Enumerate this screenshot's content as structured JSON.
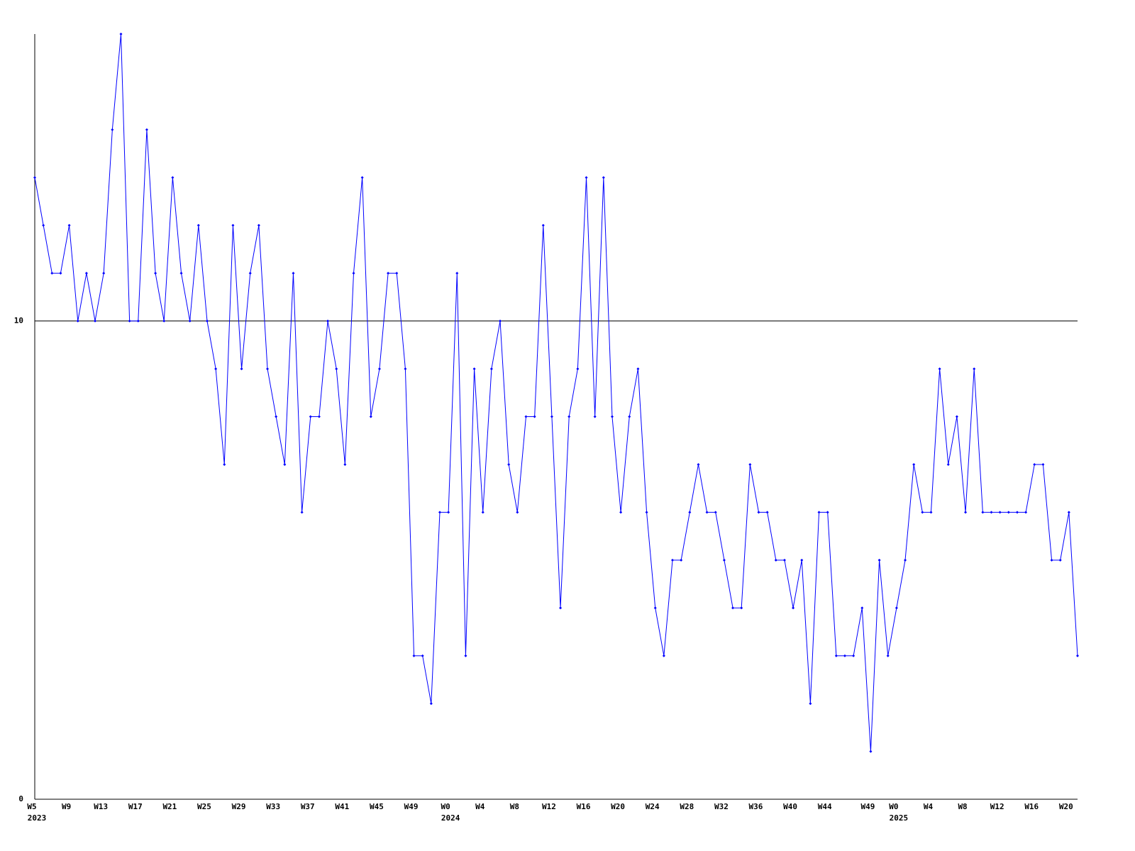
{
  "chart_data": {
    "type": "line",
    "color": "#0000ff",
    "ylim": [
      0,
      16
    ],
    "yticks": [
      0,
      10
    ],
    "grid": true,
    "categories": [
      "W5",
      null,
      null,
      null,
      "W9",
      null,
      null,
      null,
      "W13",
      null,
      null,
      null,
      "W17",
      null,
      null,
      null,
      "W21",
      null,
      null,
      null,
      "W25",
      null,
      null,
      null,
      "W29",
      null,
      null,
      null,
      "W33",
      null,
      null,
      null,
      "W37",
      null,
      null,
      null,
      "W41",
      null,
      null,
      null,
      "W45",
      null,
      null,
      null,
      "W49",
      null,
      null,
      null,
      "W0",
      null,
      null,
      null,
      "W4",
      null,
      null,
      null,
      "W8",
      null,
      null,
      null,
      "W12",
      null,
      null,
      null,
      "W16",
      null,
      null,
      null,
      "W20",
      null,
      null,
      null,
      "W24",
      null,
      null,
      null,
      "W28",
      null,
      null,
      null,
      "W32",
      null,
      null,
      null,
      "W36",
      null,
      null,
      null,
      "W40",
      null,
      null,
      null,
      "W44",
      null,
      null,
      null,
      null,
      "W49",
      null,
      null,
      "W0",
      null,
      null,
      null,
      "W4",
      null,
      null,
      null,
      "W8",
      null,
      null,
      null,
      "W12",
      null,
      null,
      null,
      "W16",
      null,
      null,
      null,
      "W20",
      null
    ],
    "years": [
      "2023",
      null,
      null,
      null,
      null,
      null,
      null,
      null,
      null,
      null,
      null,
      null,
      null,
      null,
      null,
      null,
      null,
      null,
      null,
      null,
      null,
      null,
      null,
      null,
      null,
      null,
      null,
      null,
      null,
      null,
      null,
      null,
      null,
      null,
      null,
      null,
      null,
      null,
      null,
      null,
      null,
      null,
      null,
      null,
      null,
      null,
      null,
      null,
      "2024",
      null,
      null,
      null,
      null,
      null,
      null,
      null,
      null,
      null,
      null,
      null,
      null,
      null,
      null,
      null,
      null,
      null,
      null,
      null,
      null,
      null,
      null,
      null,
      null,
      null,
      null,
      null,
      null,
      null,
      null,
      null,
      null,
      null,
      null,
      null,
      null,
      null,
      null,
      null,
      null,
      null,
      null,
      null,
      null,
      null,
      null,
      null,
      null,
      null,
      null,
      null,
      "2025",
      null,
      null,
      null,
      null,
      null,
      null,
      null,
      null,
      null,
      null,
      null,
      null,
      null,
      null,
      null,
      null,
      null,
      null,
      null,
      null,
      null
    ],
    "values": [
      13,
      12,
      11,
      11,
      12,
      10,
      11,
      10,
      11,
      14,
      16,
      10,
      10,
      14,
      11,
      10,
      13,
      11,
      10,
      12,
      10,
      9,
      7,
      12,
      9,
      11,
      12,
      9,
      8,
      7,
      11,
      6,
      8,
      8,
      10,
      9,
      7,
      11,
      13,
      8,
      9,
      11,
      11,
      9,
      3,
      3,
      2,
      6,
      6,
      11,
      3,
      9,
      6,
      9,
      10,
      7,
      6,
      8,
      8,
      12,
      8,
      4,
      8,
      9,
      13,
      8,
      13,
      8,
      6,
      8,
      9,
      6,
      4,
      3,
      5,
      5,
      6,
      7,
      6,
      6,
      5,
      4,
      4,
      7,
      6,
      6,
      5,
      5,
      4,
      5,
      2,
      6,
      6,
      3,
      3,
      3,
      4,
      1,
      5,
      3,
      4,
      5,
      7,
      6,
      6,
      9,
      7,
      8,
      6,
      9,
      6,
      6,
      6,
      6,
      6,
      6,
      7,
      7,
      5,
      5,
      6,
      3
    ]
  }
}
